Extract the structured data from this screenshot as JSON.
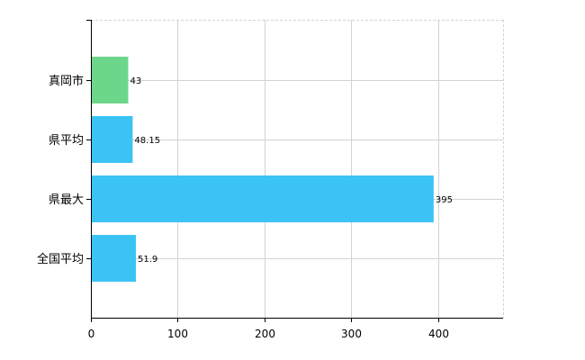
{
  "chart_data": {
    "type": "bar",
    "orientation": "horizontal",
    "categories": [
      "真岡市",
      "県平均",
      "県最大",
      "全国平均"
    ],
    "values": [
      43,
      48.15,
      395,
      51.9
    ],
    "value_labels": [
      "43",
      "48.15",
      "395",
      "51.9"
    ],
    "bar_colors": [
      "#6cd68a",
      "#3cc3f5",
      "#3cc3f5",
      "#3cc3f5"
    ],
    "xlim": [
      0,
      475
    ],
    "xticks": [
      0,
      100,
      200,
      300,
      400
    ],
    "xtick_labels": [
      "0",
      "100",
      "200",
      "300",
      "400"
    ],
    "grid": true,
    "grid_color": "#d3d3d3",
    "title": "",
    "xlabel": "",
    "ylabel": ""
  }
}
